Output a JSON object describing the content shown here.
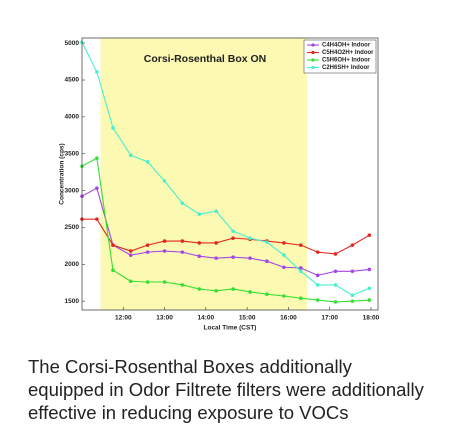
{
  "chart_data": {
    "type": "line",
    "annotation": "Corsi-Rosenthal Box ON",
    "xlabel": "Local Time (CST)",
    "ylabel": "Concentration (cps)",
    "shade": [
      11.45,
      16.45
    ],
    "shade_color": "#fcf9b3",
    "xlim": [
      11.0,
      18.17
    ],
    "xticks": [
      {
        "value": 12,
        "label": "12:00"
      },
      {
        "value": 13,
        "label": "13:00"
      },
      {
        "value": 14,
        "label": "14:00"
      },
      {
        "value": 15,
        "label": "15:00"
      },
      {
        "value": 16,
        "label": "16:00"
      },
      {
        "value": 17,
        "label": "17:00"
      },
      {
        "value": 18,
        "label": "18:00"
      }
    ],
    "ylim": [
      1380,
      5070
    ],
    "yticks": [
      1500,
      2000,
      2500,
      3000,
      3500,
      4000,
      4500,
      5000
    ],
    "legend": "upper right",
    "x": [
      11.0,
      11.36,
      11.75,
      12.18,
      12.59,
      13.0,
      13.43,
      13.84,
      14.25,
      14.66,
      15.07,
      15.48,
      15.89,
      16.3,
      16.71,
      17.14,
      17.55,
      17.96
    ],
    "series": [
      {
        "name": "C4H4OH+ Indoor",
        "color": "#a646e6",
        "values": [
          2924,
          3033,
          2260,
          2124,
          2165,
          2180,
          2165,
          2110,
          2083,
          2097,
          2083,
          2042,
          1960,
          1950,
          1850,
          1905,
          1905,
          1930
        ]
      },
      {
        "name": "C5H4O2H+ Indoor",
        "color": "#e3261e",
        "values": [
          2612,
          2612,
          2260,
          2180,
          2260,
          2315,
          2315,
          2290,
          2290,
          2355,
          2340,
          2315,
          2290,
          2260,
          2165,
          2140,
          2260,
          2395
        ]
      },
      {
        "name": "C5H6OH+ Indoor",
        "color": "#34e034",
        "values": [
          3330,
          3440,
          1920,
          1770,
          1760,
          1760,
          1720,
          1665,
          1640,
          1665,
          1625,
          1595,
          1570,
          1540,
          1515,
          1490,
          1500,
          1515
        ]
      },
      {
        "name": "C2H6SH+ Indoor",
        "color": "#48f0d0",
        "values": [
          5010,
          4610,
          3850,
          3480,
          3390,
          3130,
          2830,
          2680,
          2720,
          2450,
          2355,
          2300,
          2125,
          1905,
          1720,
          1720,
          1580,
          1675
        ]
      }
    ]
  },
  "caption": [
    "The Corsi-Rosenthal Boxes additionally",
    "equipped in Odor Filtrete filters were additionally",
    "effective in reducing exposure to VOCs"
  ]
}
